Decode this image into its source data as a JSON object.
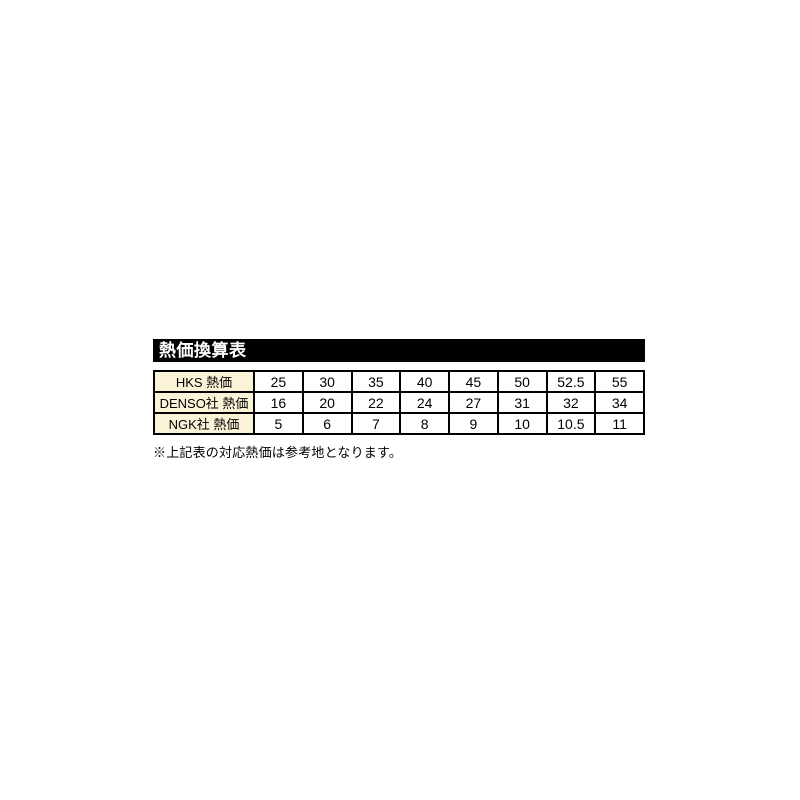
{
  "title": {
    "text": "熱価換算表",
    "bar_color": "#000000",
    "text_color": "#ffffff"
  },
  "style": {
    "label_cell_background": "#fbf3d7",
    "border_color": "#000000",
    "page_background": "#ffffff"
  },
  "footnote": {
    "text": "※上記表の対応熱価は参考地となります。"
  },
  "chart_data": {
    "type": "table",
    "title": "熱価換算表",
    "rows": [
      {
        "label": "HKS 熱価",
        "values": [
          "25",
          "30",
          "35",
          "40",
          "45",
          "50",
          "52.5",
          "55"
        ]
      },
      {
        "label": "DENSO社 熱価",
        "values": [
          "16",
          "20",
          "22",
          "24",
          "27",
          "31",
          "32",
          "34"
        ]
      },
      {
        "label": "NGK社 熱価",
        "values": [
          "5",
          "6",
          "7",
          "8",
          "9",
          "10",
          "10.5",
          "11"
        ]
      }
    ],
    "footnote": "※上記表の対応熱価は参考地となります。",
    "layout": {
      "label_column": "left",
      "grid": true,
      "legend": "none"
    }
  }
}
